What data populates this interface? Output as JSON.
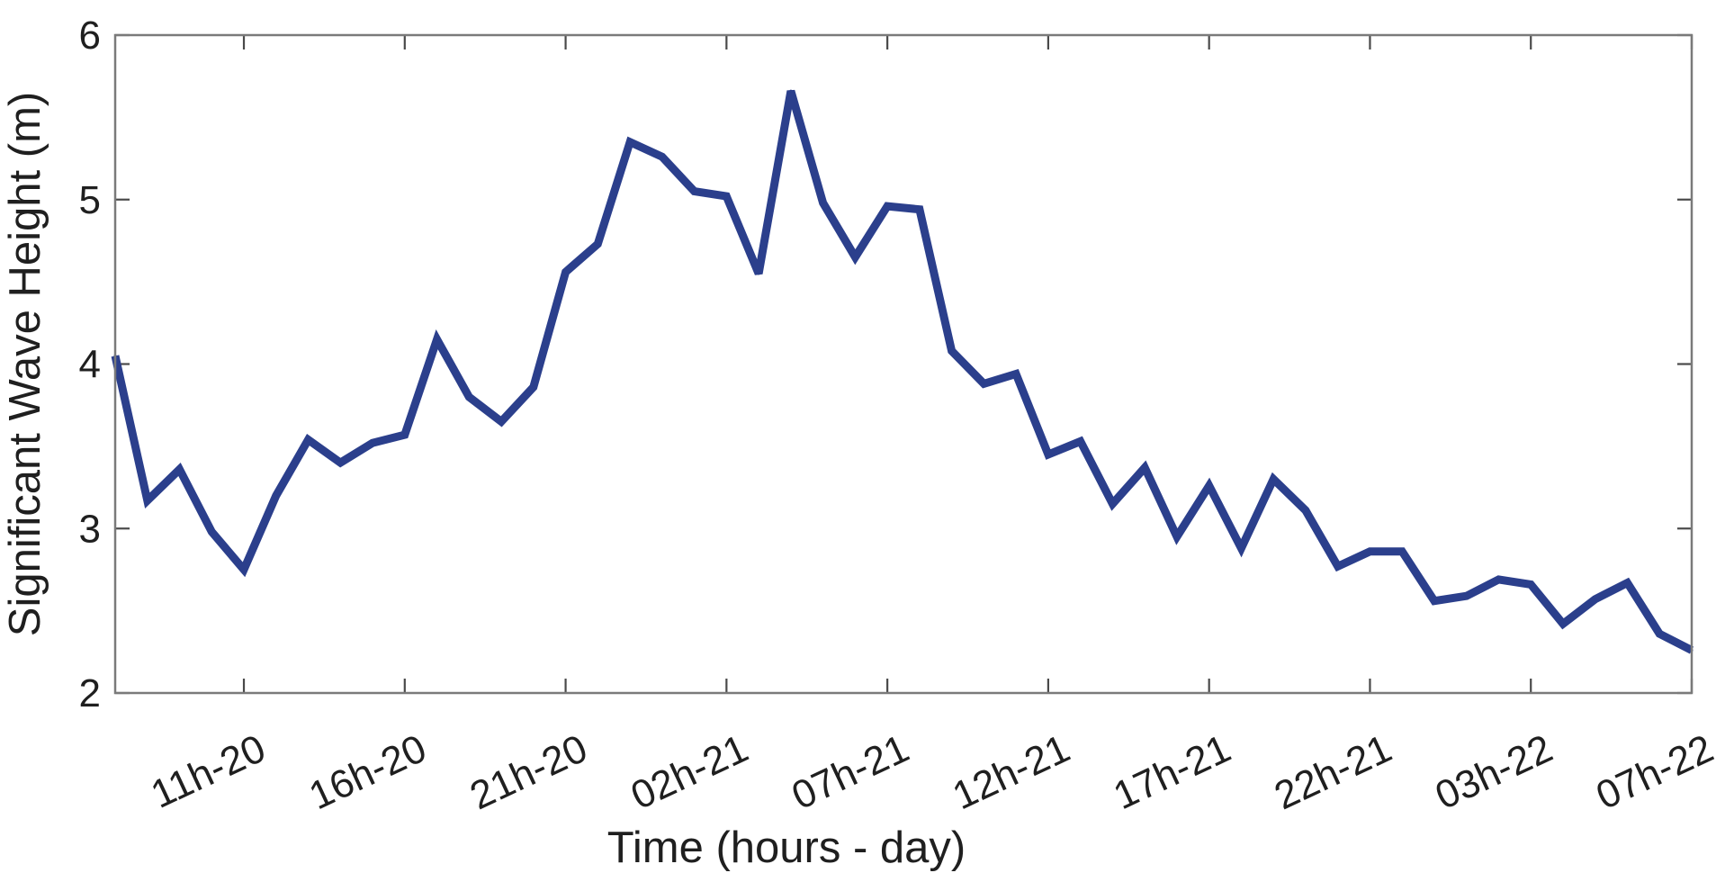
{
  "chart_data": {
    "type": "line",
    "title": "",
    "xlabel": "Time (hours - day)",
    "ylabel": "Significant Wave Height (m)",
    "ylim": [
      2,
      6
    ],
    "yticks": [
      2,
      3,
      4,
      5,
      6
    ],
    "grid": false,
    "x_tick_labels": [
      {
        "label": "11h-20",
        "index": 4
      },
      {
        "label": "16h-20",
        "index": 9
      },
      {
        "label": "21h-20",
        "index": 14
      },
      {
        "label": "02h-21",
        "index": 19
      },
      {
        "label": "07h-21",
        "index": 24
      },
      {
        "label": "12h-21",
        "index": 29
      },
      {
        "label": "17h-21",
        "index": 34
      },
      {
        "label": "22h-21",
        "index": 39
      },
      {
        "label": "03h-22",
        "index": 44
      },
      {
        "label": "07h-22",
        "index": 49
      }
    ],
    "series": [
      {
        "color": "#2b3f8c",
        "values": [
          4.05,
          3.17,
          3.36,
          2.98,
          2.75,
          3.2,
          3.54,
          3.4,
          3.52,
          3.57,
          4.15,
          3.8,
          3.65,
          3.86,
          4.56,
          4.73,
          5.35,
          5.26,
          5.05,
          5.02,
          4.55,
          5.66,
          4.98,
          4.65,
          4.96,
          4.94,
          4.08,
          3.88,
          3.94,
          3.45,
          3.53,
          3.15,
          3.37,
          2.95,
          3.26,
          2.88,
          3.3,
          3.11,
          2.77,
          2.86,
          2.86,
          2.56,
          2.59,
          2.69,
          2.66,
          2.42,
          2.57,
          2.67,
          2.36,
          2.26
        ]
      }
    ]
  }
}
